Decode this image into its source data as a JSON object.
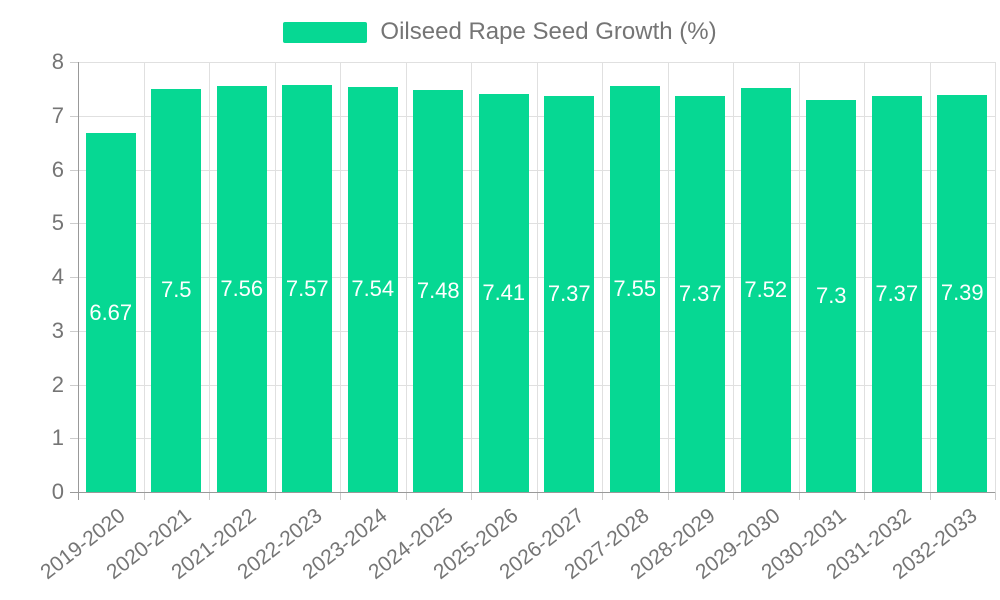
{
  "chart_data": {
    "type": "bar",
    "title": "",
    "legend_position": "top-center",
    "grid": true,
    "categories": [
      "2019-2020",
      "2020-2021",
      "2021-2022",
      "2022-2023",
      "2023-2024",
      "2024-2025",
      "2025-2026",
      "2026-2027",
      "2027-2028",
      "2028-2029",
      "2029-2030",
      "2030-2031",
      "2031-2032",
      "2032-2033"
    ],
    "series": [
      {
        "name": "Oilseed Rape Seed Growth (%)",
        "values": [
          6.67,
          7.5,
          7.56,
          7.57,
          7.54,
          7.48,
          7.41,
          7.37,
          7.55,
          7.37,
          7.52,
          7.3,
          7.37,
          7.39
        ],
        "value_labels": [
          "6.67",
          "7.5",
          "7.56",
          "7.57",
          "7.54",
          "7.48",
          "7.41",
          "7.37",
          "7.55",
          "7.37",
          "7.52",
          "7.3",
          "7.37",
          "7.39"
        ]
      }
    ],
    "xlabel": "",
    "ylabel": "",
    "ylim": [
      0,
      8
    ],
    "yticks": [
      0,
      1,
      2,
      3,
      4,
      5,
      6,
      7,
      8
    ],
    "colors": {
      "bar": "#06d893",
      "bar_label_text": "#ffffff",
      "axis_text": "#757575",
      "axis_line": "#999999",
      "grid_line": "#e0e0e0",
      "tick_mark": "#cccccc"
    }
  }
}
